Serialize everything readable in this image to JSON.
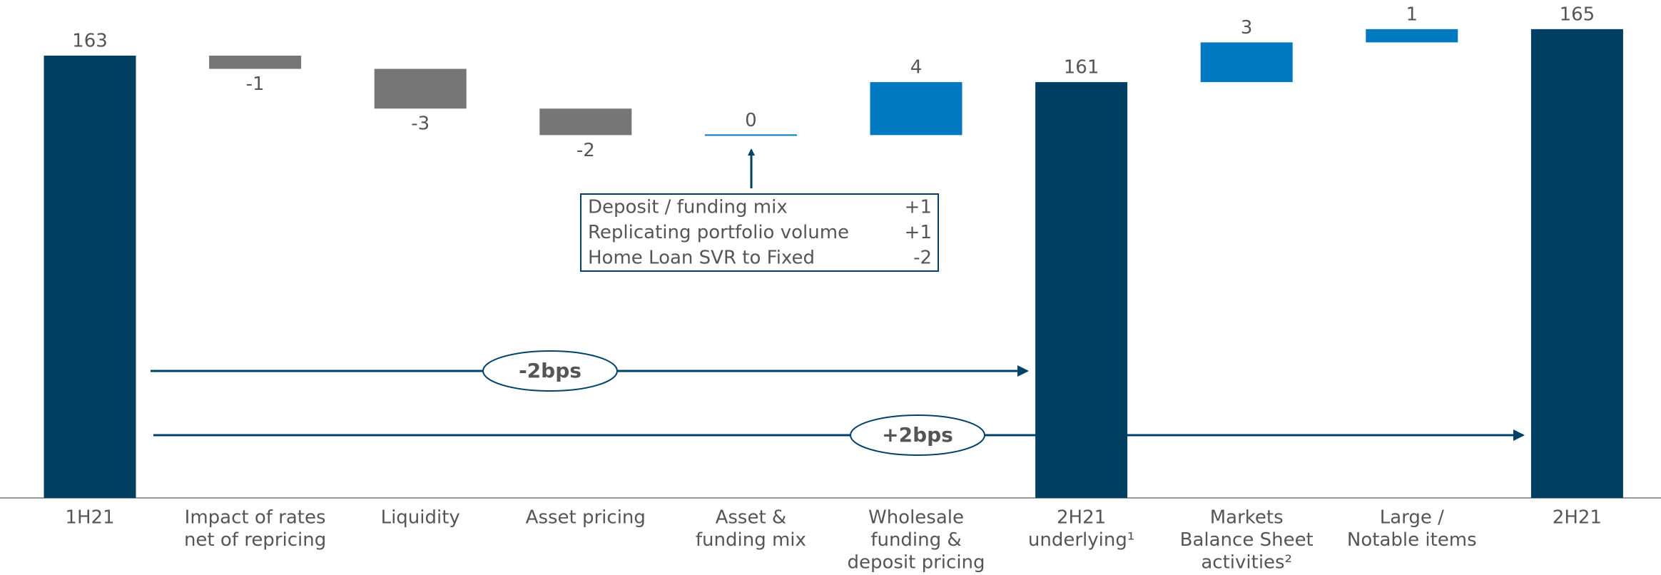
{
  "chart_data": {
    "type": "waterfall",
    "categories": [
      [
        "1H21"
      ],
      [
        "Impact of rates",
        "net of repricing"
      ],
      [
        "Liquidity"
      ],
      [
        "Asset pricing"
      ],
      [
        "Asset &",
        "funding mix"
      ],
      [
        "Wholesale",
        "funding &",
        "deposit pricing"
      ],
      [
        "2H21",
        "underlying¹"
      ],
      [
        "Markets",
        "Balance Sheet",
        "activities²"
      ],
      [
        "Large /",
        "Notable items"
      ],
      [
        "2H21"
      ]
    ],
    "values": [
      163,
      -1,
      -3,
      -2,
      0,
      4,
      161,
      3,
      1,
      165
    ],
    "totals": [
      true,
      false,
      false,
      false,
      false,
      false,
      true,
      false,
      false,
      true
    ],
    "colors": {
      "total": "#003f62",
      "negative": "#767676",
      "positive": "#0079c1"
    },
    "ylim": [
      129.6,
      167.2
    ],
    "annotation_box": {
      "rows": [
        [
          "Deposit / funding mix",
          "+1"
        ],
        [
          "Replicating portfolio volume",
          "+1"
        ],
        [
          "Home Loan SVR to Fixed",
          "-2"
        ]
      ]
    },
    "bridges": [
      "-2bps",
      "+2bps"
    ]
  }
}
